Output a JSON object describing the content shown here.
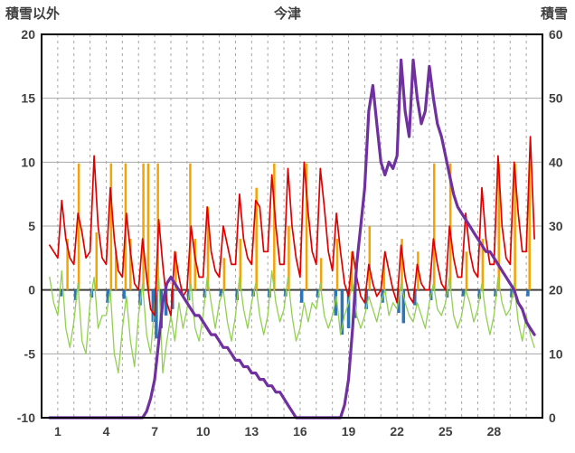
{
  "header": {
    "left_label": "積雪以外",
    "title": "今津",
    "right_label": "積雪"
  },
  "chart_data": {
    "type": "line",
    "title": "今津",
    "grid": true,
    "grid_color": "#a6a6a6",
    "zero_line_color": "#404040",
    "border_color": "#000000",
    "text_color": "#404040",
    "x_axis": {
      "min": 0,
      "max": 31,
      "ticks": [
        1,
        4,
        7,
        10,
        13,
        16,
        19,
        22,
        25,
        28
      ],
      "day_gridlines": 30
    },
    "left_y": {
      "label": "積雪以外",
      "min": -10,
      "max": 20,
      "ticks": [
        -10,
        -5,
        0,
        5,
        10,
        15,
        20
      ]
    },
    "right_y": {
      "label": "積雪",
      "min": 0,
      "max": 60,
      "ticks": [
        0,
        10,
        20,
        30,
        40,
        50,
        60
      ]
    },
    "series": [
      {
        "name": "orange-bars",
        "type": "bar",
        "axis": "left",
        "color": "#f5a300",
        "width": 2.5,
        "points": [
          [
            1.6,
            4.0
          ],
          [
            2.3,
            9.9
          ],
          [
            3.4,
            4.5
          ],
          [
            4.3,
            9.9
          ],
          [
            4.6,
            3.0
          ],
          [
            5.2,
            9.9
          ],
          [
            5.5,
            4.0
          ],
          [
            6.3,
            9.9
          ],
          [
            6.6,
            9.9
          ],
          [
            7.2,
            9.9
          ],
          [
            8.3,
            3.0
          ],
          [
            9.2,
            9.9
          ],
          [
            9.5,
            4.0
          ],
          [
            10.3,
            6.5
          ],
          [
            11.3,
            2.5
          ],
          [
            12.3,
            4.0
          ],
          [
            13.3,
            8.0
          ],
          [
            14.4,
            9.9
          ],
          [
            15.3,
            5.0
          ],
          [
            16.4,
            9.9
          ],
          [
            17.3,
            2.5
          ],
          [
            18.3,
            4.0
          ],
          [
            19.2,
            3.0
          ],
          [
            20.3,
            5.0
          ],
          [
            21.2,
            2.5
          ],
          [
            22.3,
            4.0
          ],
          [
            23.3,
            3.0
          ],
          [
            24.3,
            9.9
          ],
          [
            25.3,
            9.9
          ],
          [
            26.3,
            3.0
          ],
          [
            27.3,
            4.0
          ],
          [
            28.3,
            9.9
          ],
          [
            29.3,
            9.9
          ],
          [
            30.2,
            9.9
          ]
        ]
      },
      {
        "name": "blue-bars",
        "type": "bar",
        "axis": "left",
        "color": "#2e75b6",
        "width": 3.5,
        "points": [
          [
            1.2,
            -0.5
          ],
          [
            2.1,
            -0.8
          ],
          [
            3.1,
            -0.6
          ],
          [
            4.1,
            -1.0
          ],
          [
            5.1,
            -0.7
          ],
          [
            6.1,
            -1.2
          ],
          [
            6.9,
            -2.5
          ],
          [
            7.1,
            -3.8
          ],
          [
            7.4,
            -3.0
          ],
          [
            7.7,
            -2.0
          ],
          [
            8.1,
            -1.5
          ],
          [
            9.1,
            -0.8
          ],
          [
            10.1,
            -0.6
          ],
          [
            11.1,
            -0.5
          ],
          [
            12.1,
            -0.8
          ],
          [
            13.1,
            -0.5
          ],
          [
            14.1,
            -0.6
          ],
          [
            15.1,
            -0.5
          ],
          [
            16.1,
            -1.0
          ],
          [
            17.1,
            -0.6
          ],
          [
            18.2,
            -2.0
          ],
          [
            18.6,
            -3.5
          ],
          [
            19.0,
            -3.0
          ],
          [
            19.4,
            -2.2
          ],
          [
            20.1,
            -1.5
          ],
          [
            21.1,
            -1.0
          ],
          [
            22.1,
            -1.8
          ],
          [
            22.4,
            -2.6
          ],
          [
            23.1,
            -1.2
          ],
          [
            24.1,
            -0.8
          ],
          [
            25.1,
            -0.6
          ],
          [
            26.1,
            -0.5
          ],
          [
            27.1,
            -0.7
          ],
          [
            28.1,
            -0.5
          ],
          [
            29.1,
            -0.6
          ],
          [
            30.1,
            -0.5
          ]
        ]
      },
      {
        "name": "green-line",
        "type": "line",
        "axis": "left",
        "color": "#92d050",
        "width": 1.3,
        "x0": 0.5,
        "dx": 0.25,
        "values": [
          1.0,
          -1.0,
          -2.0,
          1.5,
          -3.0,
          -4.5,
          -2.5,
          0.5,
          -4.0,
          -5.0,
          -1.0,
          1.0,
          -3.0,
          -2.0,
          -2.0,
          0.0,
          -5.0,
          -6.5,
          -3.0,
          -0.5,
          -4.0,
          -6.0,
          -2.0,
          0.5,
          -3.5,
          -5.0,
          -1.0,
          1.0,
          -6.5,
          -4.0,
          -2.0,
          -4.0,
          -1.0,
          -3.0,
          -1.5,
          0.5,
          -3.0,
          -4.0,
          -2.0,
          1.0,
          -1.0,
          -3.0,
          -1.0,
          0.0,
          -2.5,
          -4.0,
          -2.0,
          1.0,
          -1.5,
          -3.0,
          -1.0,
          0.5,
          -2.0,
          -3.5,
          -2.0,
          1.5,
          -1.0,
          -2.5,
          -1.5,
          1.0,
          -2.0,
          -4.0,
          -3.0,
          -1.0,
          -2.5,
          -1.0,
          -1.5,
          0.5,
          -2.0,
          -3.0,
          -2.0,
          -0.5,
          -3.5,
          -2.0,
          -1.0,
          0.5,
          -2.0,
          -3.0,
          -2.0,
          -0.5,
          -1.5,
          -2.5,
          -1.0,
          0.0,
          -2.0,
          -1.0,
          -1.5,
          0.5,
          -1.0,
          -2.0,
          -2.5,
          -1.0,
          -2.0,
          -3.0,
          -1.0,
          0.5,
          -1.5,
          -2.0,
          -1.0,
          1.0,
          -2.0,
          -3.0,
          -2.0,
          0.0,
          -1.0,
          -2.5,
          -1.5,
          0.5,
          -2.0,
          -3.5,
          -2.0,
          1.0,
          -1.0,
          -2.0,
          -1.5,
          0.5,
          -2.5,
          -4.0,
          -2.0,
          -3.5,
          -4.5
        ]
      },
      {
        "name": "red-line",
        "type": "line",
        "axis": "left",
        "color": "#e00000",
        "width": 1.7,
        "x0": 0.5,
        "dx": 0.25,
        "values": [
          3.5,
          3.0,
          2.5,
          7.0,
          4.0,
          2.5,
          2.0,
          6.0,
          4.5,
          2.5,
          3.0,
          10.5,
          5.0,
          2.5,
          2.0,
          8.0,
          4.0,
          1.5,
          1.0,
          6.0,
          3.0,
          0.5,
          0.0,
          4.0,
          1.0,
          -1.5,
          -2.0,
          5.5,
          2.0,
          -1.0,
          -2.0,
          3.0,
          1.0,
          -0.5,
          0.0,
          5.0,
          2.5,
          1.0,
          1.0,
          6.5,
          3.0,
          1.5,
          1.0,
          5.0,
          3.5,
          2.0,
          2.0,
          7.5,
          4.0,
          2.5,
          2.0,
          7.0,
          6.5,
          3.0,
          3.0,
          9.0,
          5.0,
          2.0,
          2.0,
          9.5,
          5.0,
          2.5,
          1.0,
          10.0,
          6.0,
          3.0,
          2.0,
          9.5,
          6.5,
          3.0,
          1.5,
          6.0,
          3.0,
          0.5,
          -0.5,
          3.0,
          1.0,
          -0.5,
          -1.0,
          2.0,
          0.5,
          -0.5,
          0.0,
          3.0,
          1.5,
          0.0,
          -1.0,
          3.5,
          1.0,
          -0.5,
          -1.0,
          2.0,
          0.5,
          0.0,
          0.0,
          4.0,
          2.0,
          0.5,
          0.0,
          5.0,
          2.5,
          1.0,
          1.0,
          6.0,
          3.0,
          1.5,
          1.0,
          8.0,
          4.0,
          2.0,
          2.0,
          10.5,
          5.0,
          2.5,
          2.0,
          10.0,
          6.0,
          3.0,
          3.0,
          12.0,
          4.0
        ]
      },
      {
        "name": "snow-depth-line",
        "type": "line",
        "axis": "right",
        "color": "#7030a0",
        "width": 3.2,
        "x0": 0.5,
        "dx": 0.25,
        "values": [
          0,
          0,
          0,
          0,
          0,
          0,
          0,
          0,
          0,
          0,
          0,
          0,
          0,
          0,
          0,
          0,
          0,
          0,
          0,
          0,
          0,
          0,
          0,
          0,
          1,
          3,
          6,
          12,
          18,
          21,
          22,
          21,
          20,
          19,
          18,
          17,
          16,
          16,
          15,
          14,
          13,
          13,
          12,
          11,
          11,
          10,
          9,
          9,
          8,
          8,
          7,
          7,
          6,
          6,
          5,
          5,
          4,
          4,
          3,
          2,
          1,
          0,
          0,
          0,
          0,
          0,
          0,
          0,
          0,
          0,
          0,
          0,
          0,
          2,
          6,
          14,
          24,
          30,
          36,
          48,
          52,
          46,
          40,
          38,
          40,
          39,
          41,
          56,
          48,
          44,
          56,
          50,
          46,
          48,
          55,
          50,
          46,
          44,
          41,
          38,
          35,
          33,
          32,
          31,
          30,
          29,
          28,
          27,
          26,
          26,
          25,
          24,
          23,
          22,
          21,
          20,
          18,
          17,
          15,
          14,
          13
        ]
      }
    ]
  }
}
